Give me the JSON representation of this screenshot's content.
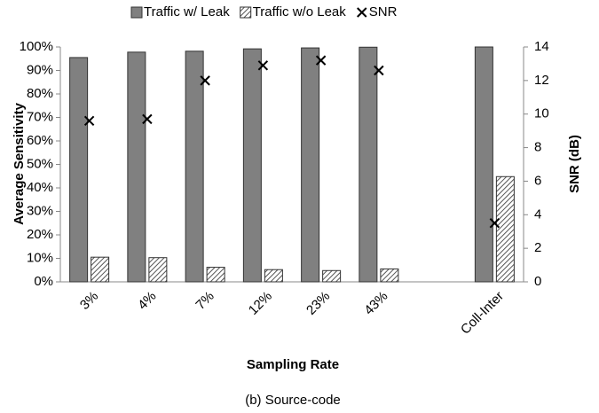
{
  "chart_data": {
    "type": "bar",
    "subtitle": "(b) Source-code",
    "x_label": "Sampling Rate",
    "y_label": "Average Sensitivity",
    "y2_label": "SNR (dB)",
    "categories": [
      "3%",
      "4%",
      "7%",
      "12%",
      "23%",
      "43%",
      null,
      "Coll-Inter"
    ],
    "series": [
      {
        "name": "Traffic w/ Leak",
        "color": "#808080",
        "values": [
          95.5,
          97.8,
          98.2,
          99.2,
          99.6,
          99.9,
          null,
          100
        ]
      },
      {
        "name": "Traffic w/o Leak",
        "color": "#666666",
        "pattern": "hatch",
        "values": [
          10.5,
          10.3,
          6.2,
          5.2,
          4.8,
          5.5,
          null,
          44.8
        ]
      },
      {
        "name": "SNR",
        "color": "#000000",
        "marker": "x",
        "axis": "y2",
        "values": [
          9.6,
          9.7,
          12.0,
          12.9,
          13.2,
          12.6,
          null,
          3.5
        ]
      }
    ],
    "ylim": [
      0,
      100
    ],
    "yticks": [
      {
        "value": 0,
        "label": "0%"
      },
      {
        "value": 10,
        "label": "10%"
      },
      {
        "value": 20,
        "label": "20%"
      },
      {
        "value": 30,
        "label": "30%"
      },
      {
        "value": 40,
        "label": "40%"
      },
      {
        "value": 50,
        "label": "50%"
      },
      {
        "value": 60,
        "label": "60%"
      },
      {
        "value": 70,
        "label": "70%"
      },
      {
        "value": 80,
        "label": "80%"
      },
      {
        "value": 90,
        "label": "90%"
      },
      {
        "value": 100,
        "label": "100%"
      }
    ],
    "y2lim": [
      0,
      14
    ],
    "y2ticks": [
      0,
      2,
      4,
      6,
      8,
      10,
      12,
      14
    ],
    "grid": false,
    "legend": "top"
  }
}
